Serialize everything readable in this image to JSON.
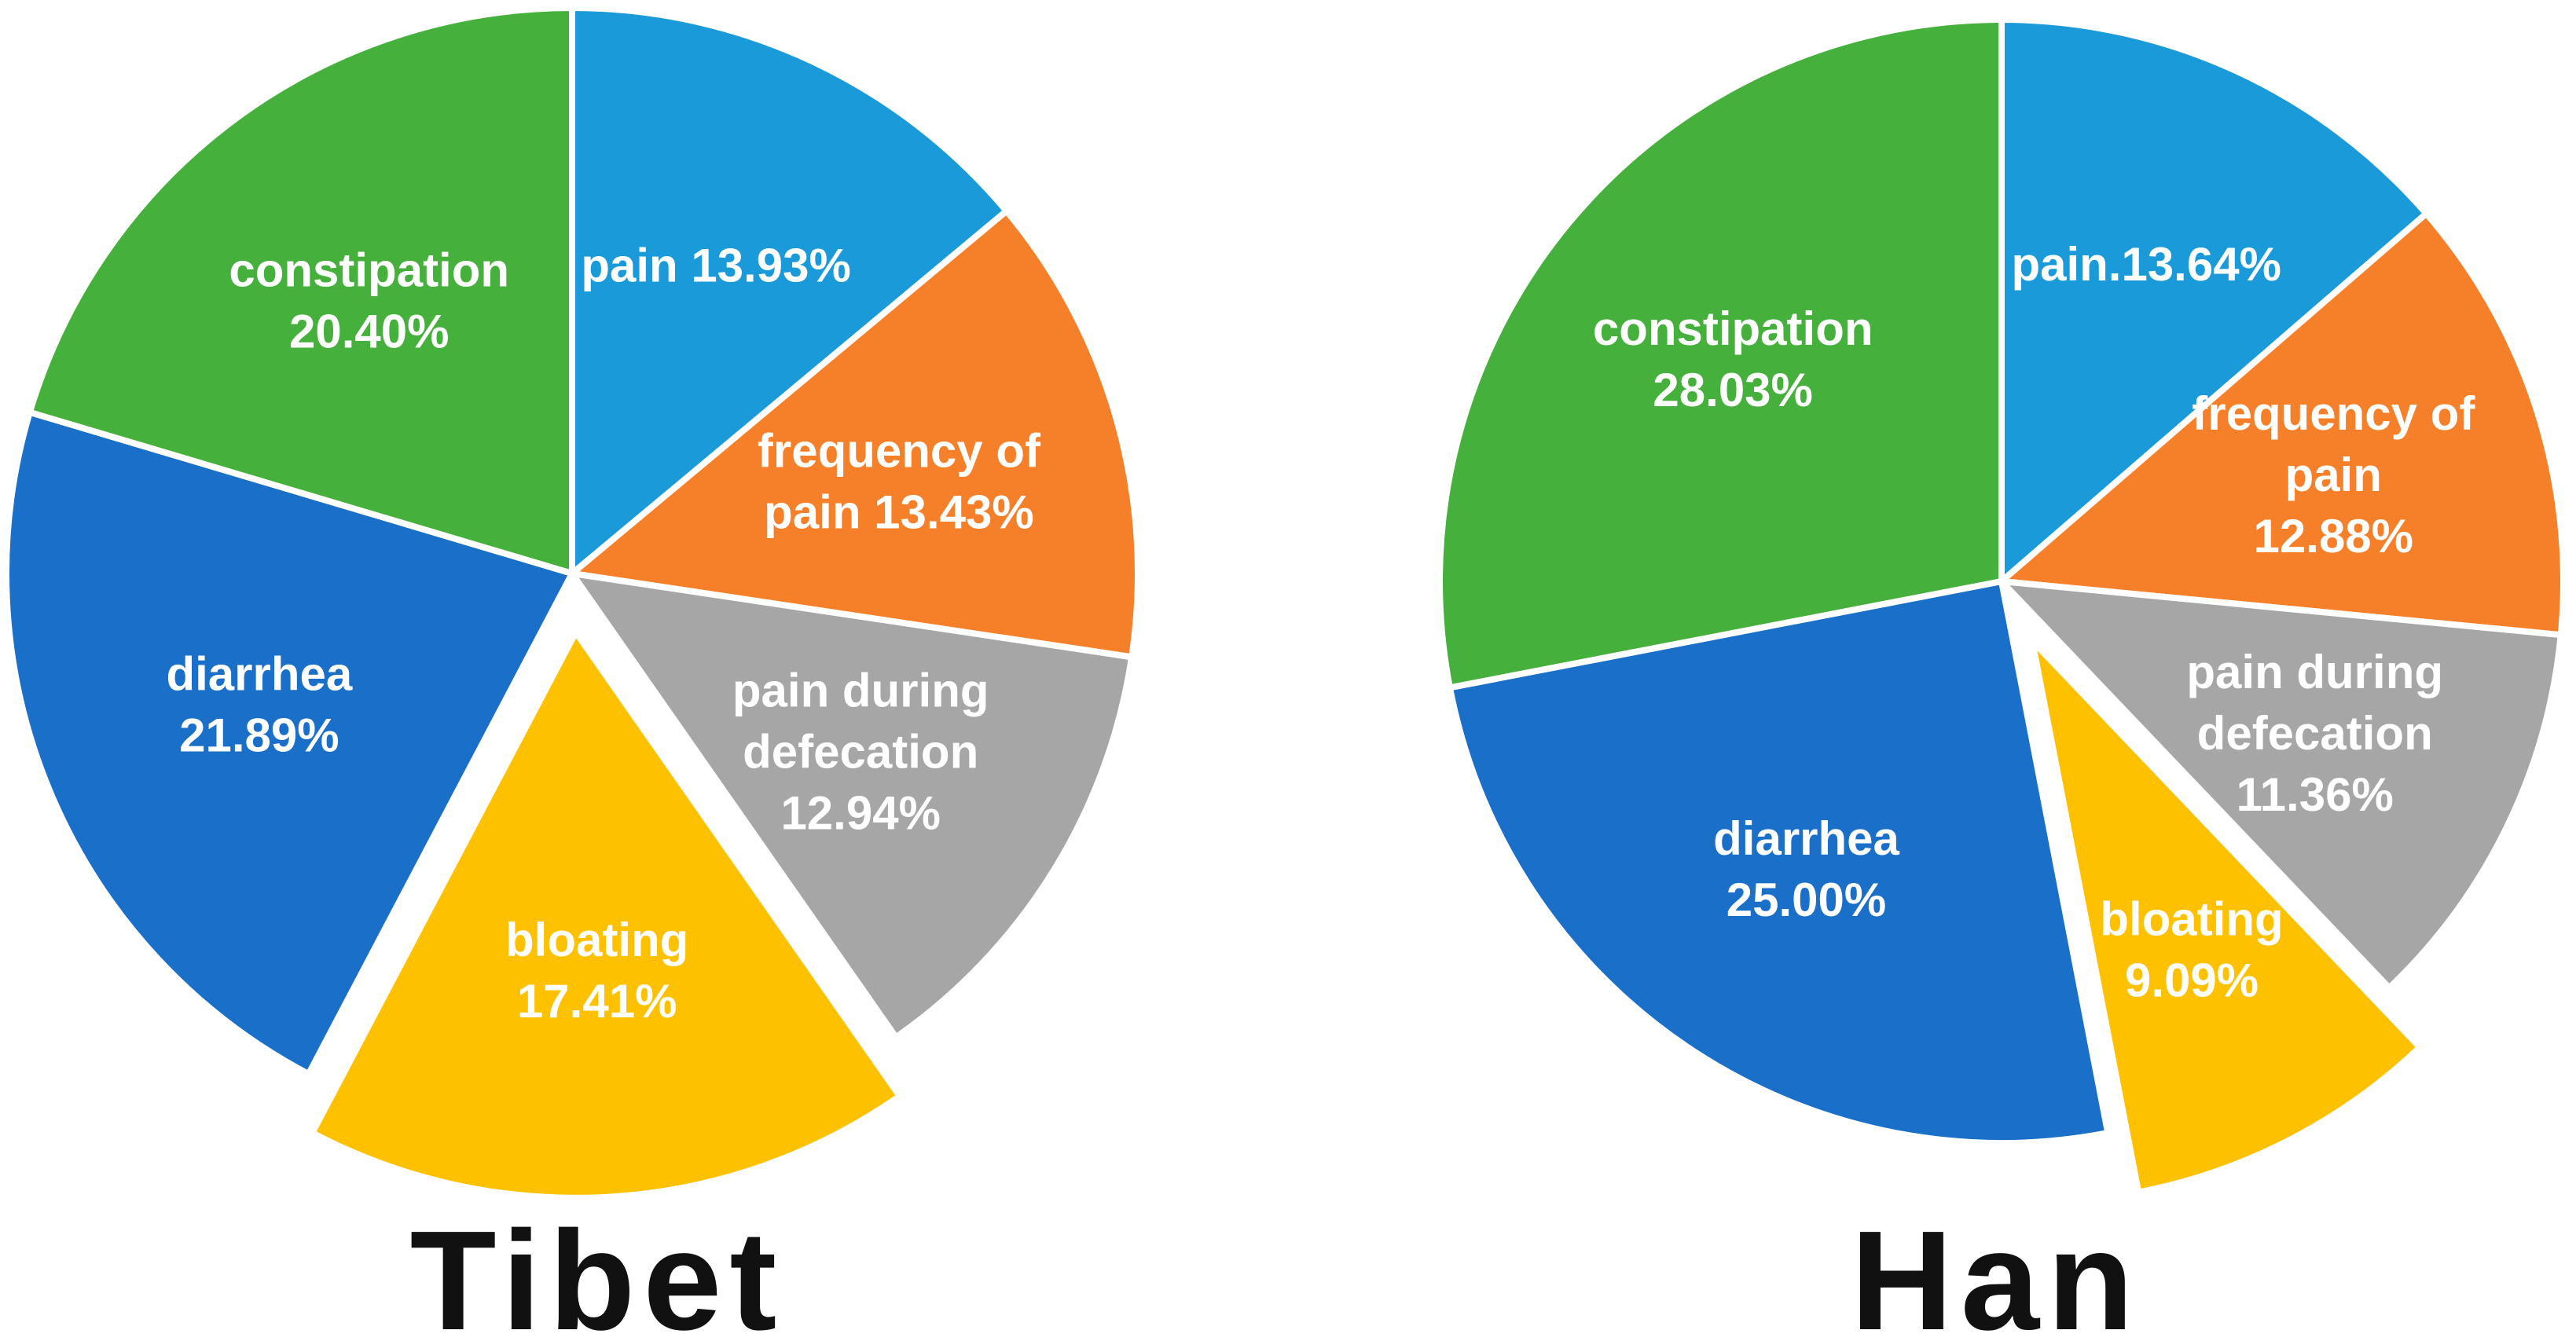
{
  "chart_data": [
    {
      "type": "pie",
      "title": "Tibet",
      "start_angle_deg": 0,
      "direction": "clockwise",
      "slices": [
        {
          "label": "pain 13.93%",
          "lines": [
            "pain 13.93%"
          ],
          "value": 13.93,
          "color": "#1a9ad9",
          "exploded": false
        },
        {
          "label": "frequency of pain 13.43%",
          "lines": [
            "frequency of",
            "pain 13.43%"
          ],
          "value": 13.43,
          "color": "#f6802a",
          "exploded": false
        },
        {
          "label": "pain during defecation 12.94%",
          "lines": [
            "pain during",
            "defecation",
            "12.94%"
          ],
          "value": 12.94,
          "color": "#a6a6a6",
          "exploded": false
        },
        {
          "label": "bloating 17.41%",
          "lines": [
            "bloating",
            "17.41%"
          ],
          "value": 17.41,
          "color": "#fdc100",
          "exploded": true
        },
        {
          "label": "diarrhea 21.89%",
          "lines": [
            "diarrhea",
            "21.89%"
          ],
          "value": 21.89,
          "color": "#1a6fc9",
          "exploded": false
        },
        {
          "label": "constipation 20.40%",
          "lines": [
            "constipation",
            "20.40%"
          ],
          "value": 20.4,
          "color": "#46b03c",
          "exploded": false
        }
      ]
    },
    {
      "type": "pie",
      "title": "Han",
      "start_angle_deg": 0,
      "direction": "clockwise",
      "slices": [
        {
          "label": "pain.13.64%",
          "lines": [
            "pain.13.64%"
          ],
          "value": 13.64,
          "color": "#1a9ad9",
          "exploded": false
        },
        {
          "label": "frequency of pain 12.88%",
          "lines": [
            "frequency of",
            "pain",
            "12.88%"
          ],
          "value": 12.88,
          "color": "#f6802a",
          "exploded": false
        },
        {
          "label": "pain during defecation 11.36%",
          "lines": [
            "pain during",
            "defecation",
            "11.36%"
          ],
          "value": 11.36,
          "color": "#a6a6a6",
          "exploded": false
        },
        {
          "label": "bloating 9.09%",
          "lines": [
            "bloating",
            "9.09%"
          ],
          "value": 9.09,
          "color": "#fdc100",
          "exploded": true
        },
        {
          "label": "diarrhea 25.00%",
          "lines": [
            "diarrhea",
            "25.00%"
          ],
          "value": 25.0,
          "color": "#1a6fc9",
          "exploded": false
        },
        {
          "label": "constipation 28.03%",
          "lines": [
            "constipation",
            "28.03%"
          ],
          "value": 28.03,
          "color": "#46b03c",
          "exploded": false
        }
      ]
    }
  ]
}
